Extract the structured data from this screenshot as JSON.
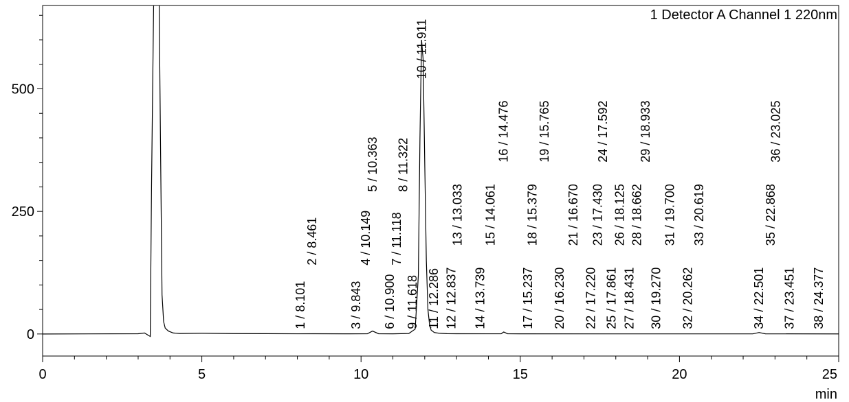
{
  "chart_data": {
    "type": "line",
    "title": "1 Detector A Channel 1 220nm",
    "xlabel": "min",
    "ylabel": "",
    "xlim": [
      0,
      25
    ],
    "ylim": [
      -45,
      670
    ],
    "x_ticks": [
      "0",
      "5",
      "10",
      "15",
      "20",
      "25"
    ],
    "y_ticks": [
      "0",
      "250",
      "500"
    ],
    "x_tick_values": [
      0,
      5,
      10,
      15,
      20,
      25
    ],
    "y_tick_values": [
      0,
      250,
      500
    ],
    "grid": false,
    "series": [
      {
        "x": [
          0,
          3.0,
          3.2,
          3.3,
          3.38,
          3.42,
          3.5,
          3.55,
          3.6,
          3.65,
          3.7,
          3.75,
          3.8,
          3.85,
          3.95,
          4.1,
          4.3,
          5.0,
          6.0,
          7.0,
          8.0,
          8.5,
          9.5,
          10.2,
          10.36,
          10.55,
          11.0,
          11.5,
          11.7,
          11.8,
          11.85,
          11.9,
          11.95,
          12.0,
          12.05,
          12.1,
          12.15,
          12.2,
          12.3,
          12.45,
          12.7,
          13.0,
          14.0,
          14.4,
          14.48,
          14.6,
          15.0,
          18.0,
          22.3,
          22.5,
          22.7,
          25.0
        ],
        "y": [
          0,
          0.5,
          2,
          -2,
          -5,
          300,
          750,
          750,
          750,
          750,
          400,
          80,
          25,
          12,
          6,
          2,
          1,
          1.5,
          0.8,
          0.6,
          0.4,
          0.5,
          0.3,
          0.5,
          6,
          0.5,
          0.3,
          1,
          10,
          120,
          400,
          600,
          560,
          350,
          150,
          50,
          20,
          8,
          3,
          1.5,
          0.6,
          0.5,
          0.4,
          0.5,
          4,
          0.5,
          0.3,
          0.2,
          0.2,
          3,
          0.3,
          0.1
        ]
      }
    ],
    "peaks": [
      {
        "label": "1 / 8.101",
        "rt": 8.101,
        "anchor": 10
      },
      {
        "label": "2 / 8.461",
        "rt": 8.461,
        "anchor": 140
      },
      {
        "label": "3 / 9.843",
        "rt": 9.843,
        "anchor": 10
      },
      {
        "label": "4 / 10.149",
        "rt": 10.149,
        "anchor": 140
      },
      {
        "label": "5 / 10.363",
        "rt": 10.363,
        "anchor": 290
      },
      {
        "label": "6 / 10.900",
        "rt": 10.9,
        "anchor": 10
      },
      {
        "label": "7 / 11.118",
        "rt": 11.118,
        "anchor": 140
      },
      {
        "label": "8 / 11.322",
        "rt": 11.322,
        "anchor": 290
      },
      {
        "label": "9 / 11.618",
        "rt": 11.618,
        "anchor": 10
      },
      {
        "label": "10 / 11.911",
        "rt": 11.911,
        "anchor": 520
      },
      {
        "label": "11 / 12.286",
        "rt": 12.286,
        "anchor": 10
      },
      {
        "label": "12 / 12.837",
        "rt": 12.837,
        "anchor": 10
      },
      {
        "label": "13 / 13.033",
        "rt": 13.033,
        "anchor": 180
      },
      {
        "label": "14 / 13.739",
        "rt": 13.739,
        "anchor": 10
      },
      {
        "label": "15 / 14.061",
        "rt": 14.061,
        "anchor": 180
      },
      {
        "label": "16 / 14.476",
        "rt": 14.476,
        "anchor": 350
      },
      {
        "label": "17 / 15.237",
        "rt": 15.237,
        "anchor": 10
      },
      {
        "label": "18 / 15.379",
        "rt": 15.379,
        "anchor": 180
      },
      {
        "label": "19 / 15.765",
        "rt": 15.765,
        "anchor": 350
      },
      {
        "label": "20 / 16.230",
        "rt": 16.23,
        "anchor": 10
      },
      {
        "label": "21 / 16.670",
        "rt": 16.67,
        "anchor": 180
      },
      {
        "label": "22 / 17.220",
        "rt": 17.22,
        "anchor": 10
      },
      {
        "label": "23 / 17.430",
        "rt": 17.43,
        "anchor": 180
      },
      {
        "label": "24 / 17.592",
        "rt": 17.592,
        "anchor": 350
      },
      {
        "label": "25 / 17.861",
        "rt": 17.861,
        "anchor": 10
      },
      {
        "label": "26 / 18.125",
        "rt": 18.125,
        "anchor": 180
      },
      {
        "label": "27 / 18.431",
        "rt": 18.431,
        "anchor": 10
      },
      {
        "label": "28 / 18.662",
        "rt": 18.662,
        "anchor": 180
      },
      {
        "label": "29 / 18.933",
        "rt": 18.933,
        "anchor": 350
      },
      {
        "label": "30 / 19.270",
        "rt": 19.27,
        "anchor": 10
      },
      {
        "label": "31 / 19.700",
        "rt": 19.7,
        "anchor": 180
      },
      {
        "label": "32 / 20.262",
        "rt": 20.262,
        "anchor": 10
      },
      {
        "label": "33 / 20.619",
        "rt": 20.619,
        "anchor": 180
      },
      {
        "label": "34 / 22.501",
        "rt": 22.501,
        "anchor": 10
      },
      {
        "label": "35 / 22.868",
        "rt": 22.868,
        "anchor": 180
      },
      {
        "label": "36 / 23.025",
        "rt": 23.025,
        "anchor": 350
      },
      {
        "label": "37 / 23.451",
        "rt": 23.451,
        "anchor": 10
      },
      {
        "label": "38 / 24.377",
        "rt": 24.377,
        "anchor": 10
      }
    ]
  }
}
